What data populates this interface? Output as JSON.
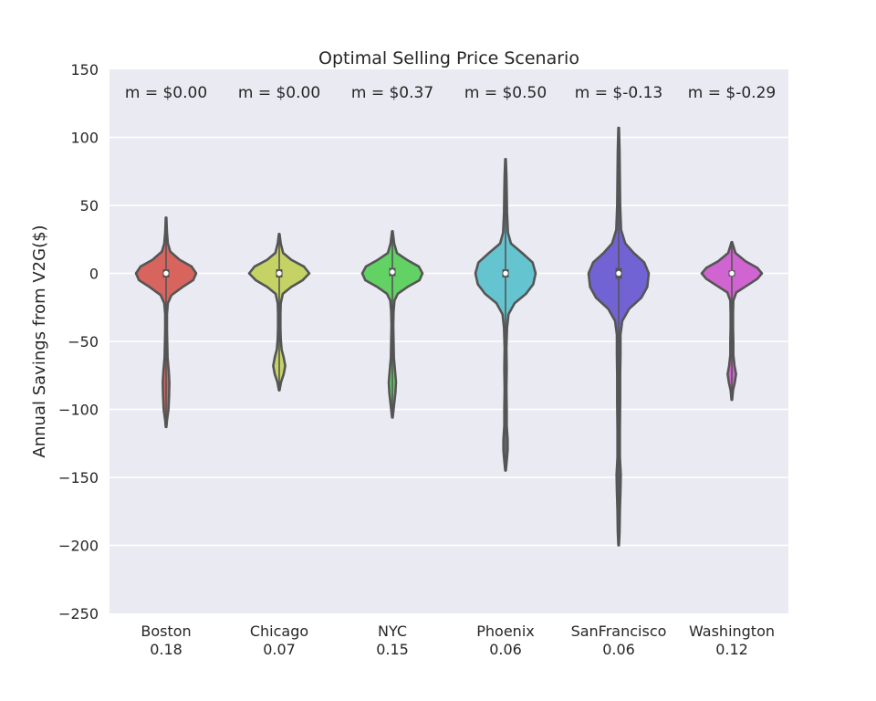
{
  "chart_data": {
    "type": "violin",
    "title": "Optimal Selling Price Scenario",
    "xlabel": "",
    "ylabel": "Annual Savings from V2G($)",
    "ylim": [
      -250,
      150
    ],
    "yticks": [
      150,
      100,
      50,
      0,
      -50,
      -100,
      -150,
      -200,
      -250
    ],
    "ytick_labels": [
      "150",
      "100",
      "50",
      "0",
      "−50",
      "−100",
      "−150",
      "−200",
      "−250"
    ],
    "grid": true,
    "categories": [
      {
        "name": "Boston",
        "sublabel": "0.18",
        "annotation": "m = $0.00",
        "color": "#d7655e",
        "min": -113,
        "max": 41,
        "median": 0,
        "q1": -3,
        "q3": 3,
        "density": [
          [
            -113,
            0.01
          ],
          [
            -108,
            0.03
          ],
          [
            -100,
            0.08
          ],
          [
            -90,
            0.1
          ],
          [
            -80,
            0.11
          ],
          [
            -72,
            0.09
          ],
          [
            -62,
            0.05
          ],
          [
            -52,
            0.04
          ],
          [
            -42,
            0.03
          ],
          [
            -30,
            0.03
          ],
          [
            -22,
            0.06
          ],
          [
            -16,
            0.18
          ],
          [
            -10,
            0.55
          ],
          [
            -5,
            0.9
          ],
          [
            0,
            1.0
          ],
          [
            5,
            0.85
          ],
          [
            10,
            0.45
          ],
          [
            16,
            0.14
          ],
          [
            22,
            0.06
          ],
          [
            30,
            0.03
          ],
          [
            41,
            0.01
          ]
        ]
      },
      {
        "name": "Chicago",
        "sublabel": "0.07",
        "annotation": "m = $0.00",
        "color": "#c5d264",
        "min": -86,
        "max": 29,
        "median": 0,
        "q1": -3,
        "q3": 3,
        "density": [
          [
            -86,
            0.01
          ],
          [
            -80,
            0.06
          ],
          [
            -74,
            0.15
          ],
          [
            -68,
            0.2
          ],
          [
            -62,
            0.15
          ],
          [
            -56,
            0.08
          ],
          [
            -48,
            0.05
          ],
          [
            -40,
            0.04
          ],
          [
            -30,
            0.04
          ],
          [
            -22,
            0.05
          ],
          [
            -15,
            0.12
          ],
          [
            -10,
            0.4
          ],
          [
            -5,
            0.78
          ],
          [
            0,
            1.0
          ],
          [
            5,
            0.82
          ],
          [
            10,
            0.4
          ],
          [
            15,
            0.13
          ],
          [
            22,
            0.05
          ],
          [
            29,
            0.01
          ]
        ]
      },
      {
        "name": "NYC",
        "sublabel": "0.15",
        "annotation": "m = $0.37",
        "color": "#62d265",
        "min": -106,
        "max": 31,
        "median": 1,
        "q1": -2,
        "q3": 4,
        "density": [
          [
            -106,
            0.01
          ],
          [
            -98,
            0.05
          ],
          [
            -88,
            0.1
          ],
          [
            -80,
            0.12
          ],
          [
            -72,
            0.09
          ],
          [
            -62,
            0.05
          ],
          [
            -50,
            0.04
          ],
          [
            -38,
            0.03
          ],
          [
            -28,
            0.04
          ],
          [
            -20,
            0.07
          ],
          [
            -15,
            0.18
          ],
          [
            -10,
            0.5
          ],
          [
            -5,
            0.9
          ],
          [
            0,
            1.0
          ],
          [
            5,
            0.88
          ],
          [
            10,
            0.48
          ],
          [
            15,
            0.15
          ],
          [
            22,
            0.06
          ],
          [
            31,
            0.01
          ]
        ]
      },
      {
        "name": "Phoenix",
        "sublabel": "0.06",
        "annotation": "m = $0.50",
        "color": "#64c4d0",
        "min": -145,
        "max": 84,
        "median": 0,
        "q1": -3,
        "q3": 3,
        "density": [
          [
            -145,
            0.01
          ],
          [
            -138,
            0.04
          ],
          [
            -130,
            0.07
          ],
          [
            -122,
            0.07
          ],
          [
            -112,
            0.04
          ],
          [
            -100,
            0.04
          ],
          [
            -85,
            0.03
          ],
          [
            -70,
            0.04
          ],
          [
            -55,
            0.03
          ],
          [
            -40,
            0.05
          ],
          [
            -30,
            0.1
          ],
          [
            -22,
            0.3
          ],
          [
            -15,
            0.68
          ],
          [
            -8,
            0.92
          ],
          [
            0,
            1.0
          ],
          [
            8,
            0.9
          ],
          [
            15,
            0.55
          ],
          [
            22,
            0.18
          ],
          [
            30,
            0.08
          ],
          [
            45,
            0.05
          ],
          [
            60,
            0.04
          ],
          [
            72,
            0.03
          ],
          [
            84,
            0.01
          ]
        ]
      },
      {
        "name": "SanFrancisco",
        "sublabel": "0.06",
        "annotation": "m = $-0.13",
        "color": "#7263d4",
        "min": -200,
        "max": 107,
        "median": 0,
        "q1": -4,
        "q3": 4,
        "density": [
          [
            -200,
            0.01
          ],
          [
            -190,
            0.03
          ],
          [
            -175,
            0.04
          ],
          [
            -160,
            0.06
          ],
          [
            -148,
            0.07
          ],
          [
            -135,
            0.04
          ],
          [
            -115,
            0.04
          ],
          [
            -95,
            0.05
          ],
          [
            -75,
            0.05
          ],
          [
            -60,
            0.06
          ],
          [
            -45,
            0.06
          ],
          [
            -35,
            0.12
          ],
          [
            -26,
            0.35
          ],
          [
            -18,
            0.75
          ],
          [
            -10,
            0.95
          ],
          [
            0,
            1.0
          ],
          [
            8,
            0.85
          ],
          [
            15,
            0.5
          ],
          [
            22,
            0.22
          ],
          [
            32,
            0.08
          ],
          [
            50,
            0.05
          ],
          [
            70,
            0.04
          ],
          [
            90,
            0.03
          ],
          [
            107,
            0.01
          ]
        ]
      },
      {
        "name": "Washington",
        "sublabel": "0.12",
        "annotation": "m = $-0.29",
        "color": "#d064d0",
        "min": -93,
        "max": 23,
        "median": 0,
        "q1": -2,
        "q3": 2,
        "density": [
          [
            -93,
            0.01
          ],
          [
            -86,
            0.04
          ],
          [
            -80,
            0.1
          ],
          [
            -74,
            0.14
          ],
          [
            -68,
            0.09
          ],
          [
            -60,
            0.05
          ],
          [
            -50,
            0.05
          ],
          [
            -40,
            0.04
          ],
          [
            -30,
            0.04
          ],
          [
            -20,
            0.05
          ],
          [
            -14,
            0.15
          ],
          [
            -9,
            0.5
          ],
          [
            -4,
            0.85
          ],
          [
            0,
            1.0
          ],
          [
            4,
            0.85
          ],
          [
            9,
            0.45
          ],
          [
            15,
            0.12
          ],
          [
            23,
            0.01
          ]
        ]
      }
    ]
  }
}
